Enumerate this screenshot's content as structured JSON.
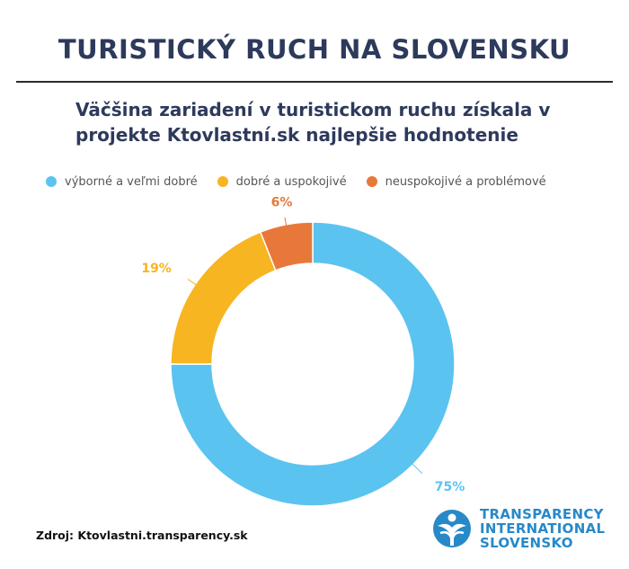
{
  "header": {
    "title": "TURISTICKÝ RUCH NA SLOVENSKU",
    "subtitle_line1": "Väčšina zariadení v turistickom ruchu získala v",
    "subtitle_line2": "projekte Ktovlastní.sk najlepšie hodnotenie"
  },
  "legend": [
    {
      "label": "výborné a veľmi dobré",
      "color": "#5bc3f0"
    },
    {
      "label": "dobré a uspokojivé",
      "color": "#f7b521"
    },
    {
      "label": "neuspokojivé a problémové",
      "color": "#e8783a"
    }
  ],
  "chart_data": {
    "type": "pie",
    "style": "donut",
    "title": "Väčšina zariadení v turistickom ruchu získala v projekte Ktovlastní.sk najlepšie hodnotenie",
    "categories": [
      "výborné a veľmi dobré",
      "dobré a uspokojivé",
      "neuspokojivé a problémové"
    ],
    "values": [
      75,
      19,
      6
    ],
    "labels": [
      "75%",
      "19%",
      "6%"
    ],
    "colors": [
      "#5bc3f0",
      "#f7b521",
      "#e8783a"
    ],
    "legend_position": "top"
  },
  "footer": {
    "source": "Zdroj: Ktovlastni.transparency.sk",
    "logo_line1": "TRANSPARENCY",
    "logo_line2": "INTERNATIONAL",
    "logo_line3": "SLOVENSKO",
    "logo_color": "#2789c8"
  }
}
